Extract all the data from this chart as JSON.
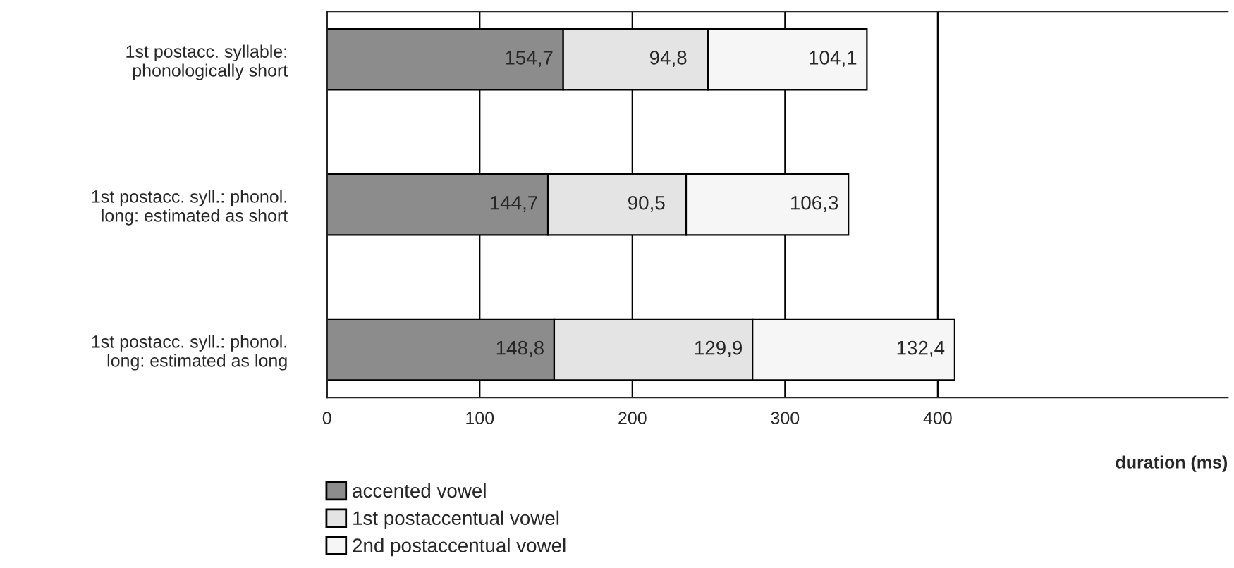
{
  "chart_data": {
    "type": "bar",
    "orientation": "horizontal",
    "stacked": true,
    "categories": [
      "1st postacc. syllable:\nphonologically short",
      "1st postacc. syll.: phonol.\nlong: estimated as short",
      "1st postacc. syll.: phonol.\nlong: estimated as long"
    ],
    "series": [
      {
        "name": "accented vowel",
        "color": "#8c8c8c",
        "values": [
          154.7,
          144.7,
          148.8
        ],
        "value_labels": [
          "154,7",
          "144,7",
          "148,8"
        ]
      },
      {
        "name": "1st postaccentual vowel",
        "color": "#e4e4e4",
        "values": [
          94.8,
          90.5,
          129.9
        ],
        "value_labels": [
          "94,8",
          "90,5",
          "129,9"
        ]
      },
      {
        "name": "2nd postaccentual vowel",
        "color": "#f6f6f6",
        "values": [
          104.1,
          106.3,
          132.4
        ],
        "value_labels": [
          "104,1",
          "106,3",
          "132,4"
        ]
      }
    ],
    "xlabel": "duration (ms)",
    "xlim": [
      0,
      590
    ],
    "xticks": [
      0,
      100,
      200,
      300,
      400
    ],
    "grid": "x",
    "legend": "bottom left"
  }
}
